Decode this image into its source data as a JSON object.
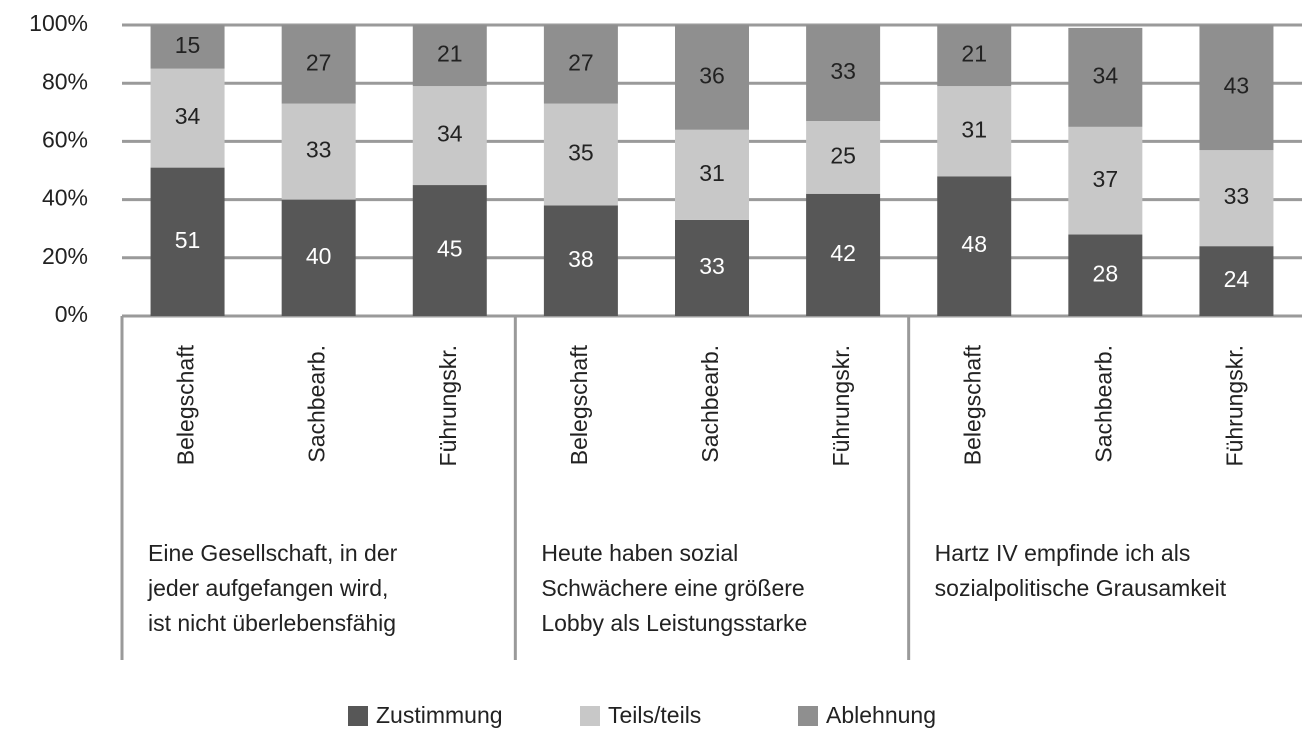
{
  "chart_data": {
    "type": "bar",
    "stacked": true,
    "categories": [
      "Belegschaft",
      "Sachbearb.",
      "Führungskr.",
      "Belegschaft",
      "Sachbearb.",
      "Führungskr.",
      "Belegschaft",
      "Sachbearb.",
      "Führungskr."
    ],
    "groups": [
      {
        "label": [
          "Eine Gesellschaft, in der",
          "jeder aufgefangen wird,",
          "ist nicht überlebensfähig"
        ]
      },
      {
        "label": [
          "Heute haben sozial",
          "Schwächere eine größere",
          "Lobby als Leistungsstarke"
        ]
      },
      {
        "label": [
          "Hartz IV empfinde ich als",
          "sozialpolitische Grausamkeit"
        ]
      }
    ],
    "series": [
      {
        "name": "Zustimmung",
        "color": "#575757",
        "values": [
          51,
          40,
          45,
          38,
          33,
          42,
          48,
          28,
          24
        ]
      },
      {
        "name": "Teils/teils",
        "color": "#c8c8c8",
        "values": [
          34,
          33,
          34,
          35,
          31,
          25,
          31,
          37,
          33
        ]
      },
      {
        "name": "Ablehnung",
        "color": "#8f8f8f",
        "values": [
          15,
          27,
          21,
          27,
          36,
          33,
          21,
          34,
          43
        ]
      }
    ],
    "ylim": [
      0,
      100
    ],
    "yticks": [
      {
        "value": 0,
        "label": "0%"
      },
      {
        "value": 20,
        "label": "20%"
      },
      {
        "value": 40,
        "label": "40%"
      },
      {
        "value": 60,
        "label": "60%"
      },
      {
        "value": 80,
        "label": "80%"
      },
      {
        "value": 100,
        "label": "100%"
      }
    ],
    "grid": true
  }
}
